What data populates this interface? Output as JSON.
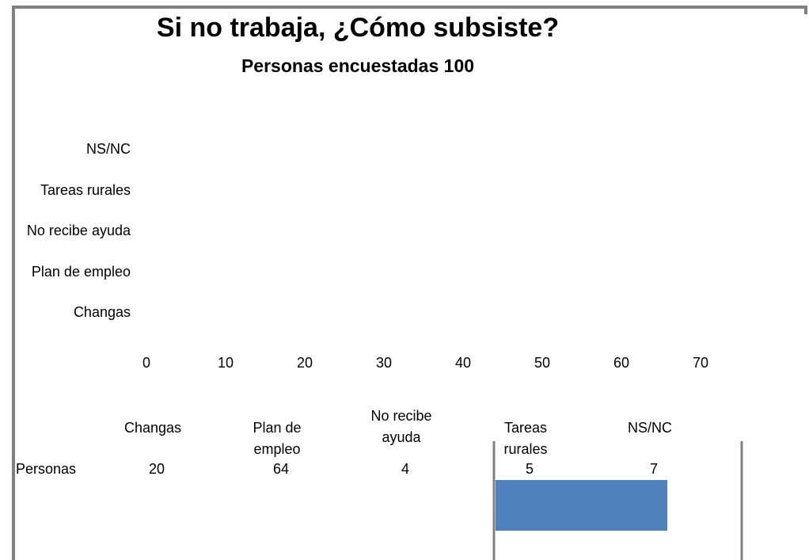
{
  "chart_data": {
    "type": "bar",
    "orientation": "horizontal",
    "title": "Si no trabaja, ¿Cómo subsiste?",
    "subtitle": "Personas encuestadas 100",
    "categories": [
      "Changas",
      "Plan de empleo",
      "No recibe ayuda",
      "Tareas rurales",
      "NS/NC"
    ],
    "series": [
      {
        "name": "Personas",
        "color": "#4f81bd",
        "values": [
          20,
          64,
          4,
          5,
          7
        ]
      }
    ],
    "xlim": [
      0,
      70
    ],
    "xticks": [
      0,
      10,
      20,
      30,
      40,
      50,
      60,
      70
    ],
    "data_table": true
  }
}
